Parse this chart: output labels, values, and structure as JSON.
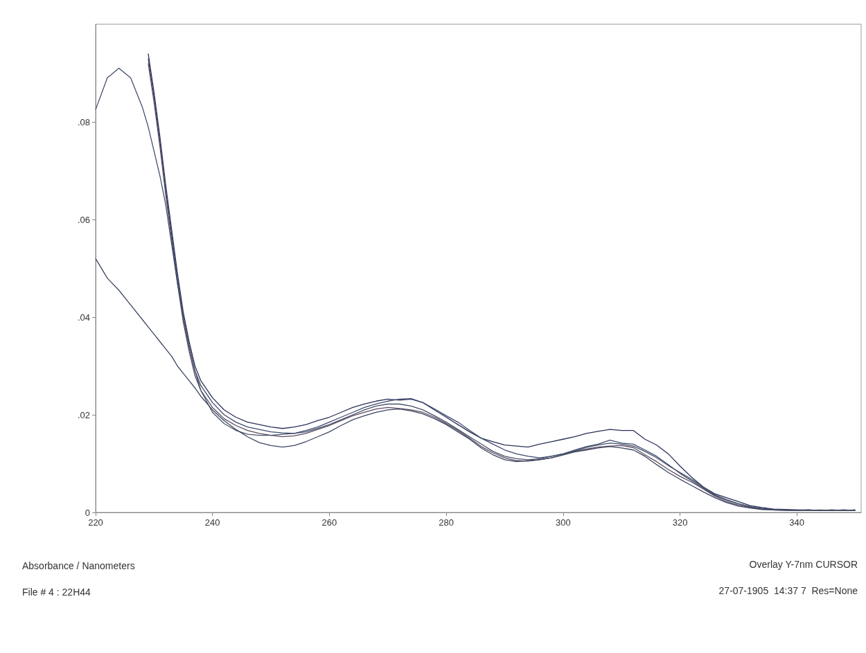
{
  "chart_data": {
    "type": "line",
    "x": [
      220,
      222,
      224,
      226,
      228,
      229,
      230,
      231,
      232,
      233,
      234,
      235,
      236,
      237,
      238,
      240,
      242,
      244,
      246,
      248,
      250,
      252,
      254,
      256,
      258,
      260,
      262,
      264,
      266,
      268,
      270,
      272,
      274,
      276,
      278,
      280,
      282,
      284,
      286,
      288,
      290,
      292,
      294,
      296,
      298,
      300,
      302,
      304,
      306,
      308,
      310,
      312,
      314,
      316,
      318,
      320,
      322,
      324,
      326,
      328,
      330,
      332,
      334,
      336,
      338,
      340,
      342,
      344,
      346,
      348,
      350
    ],
    "series": [
      {
        "color": "#2b2f5a",
        "values": [
          null,
          null,
          null,
          null,
          null,
          0.094,
          0.086,
          0.077,
          0.067,
          0.058,
          0.049,
          0.041,
          0.035,
          0.03,
          0.027,
          0.0235,
          0.021,
          0.0195,
          0.0185,
          0.018,
          0.0175,
          0.0172,
          0.0175,
          0.018,
          0.0188,
          0.0195,
          0.0205,
          0.0215,
          0.0222,
          0.0228,
          0.0232,
          0.023,
          0.0232,
          0.0225,
          0.021,
          0.0195,
          0.018,
          0.0165,
          0.0152,
          0.0145,
          0.0138,
          0.0136,
          0.0134,
          0.014,
          0.0145,
          0.015,
          0.0155,
          0.0162,
          0.0166,
          0.017,
          0.0168,
          0.0168,
          0.015,
          0.0138,
          0.012,
          0.0095,
          0.0072,
          0.0052,
          0.0038,
          0.003,
          0.0022,
          0.0014,
          0.001,
          0.0007,
          0.0006,
          0.0005,
          0.0005,
          0.0004,
          0.0005,
          0.0004,
          0.0005
        ]
      },
      {
        "color": "#3d4a6e",
        "values": [
          null,
          null,
          null,
          null,
          null,
          0.093,
          0.085,
          0.076,
          0.066,
          0.057,
          0.048,
          0.04,
          0.034,
          0.029,
          0.026,
          0.0225,
          0.02,
          0.0185,
          0.0175,
          0.017,
          0.0165,
          0.0163,
          0.0162,
          0.0168,
          0.0175,
          0.0185,
          0.0195,
          0.0205,
          0.0215,
          0.0222,
          0.0228,
          0.0232,
          0.0233,
          0.0225,
          0.0212,
          0.0198,
          0.0185,
          0.0168,
          0.0152,
          0.014,
          0.0128,
          0.012,
          0.0115,
          0.0112,
          0.0115,
          0.012,
          0.0128,
          0.0135,
          0.014,
          0.0148,
          0.0142,
          0.014,
          0.0128,
          0.0115,
          0.0098,
          0.008,
          0.0065,
          0.005,
          0.0035,
          0.0025,
          0.0018,
          0.0012,
          0.0008,
          0.0006,
          0.0005,
          0.0004,
          0.0005,
          0.0004,
          0.0004,
          0.0005,
          0.0004
        ]
      },
      {
        "color": "#5a4a5e",
        "values": [
          null,
          null,
          null,
          null,
          null,
          0.092,
          0.084,
          0.075,
          0.065,
          0.056,
          0.047,
          0.039,
          0.033,
          0.028,
          0.025,
          0.0215,
          0.0192,
          0.0178,
          0.0168,
          0.0162,
          0.0158,
          0.0155,
          0.0157,
          0.0162,
          0.017,
          0.0178,
          0.0188,
          0.0198,
          0.0205,
          0.0212,
          0.0215,
          0.0213,
          0.021,
          0.0205,
          0.0195,
          0.0182,
          0.0168,
          0.0152,
          0.0135,
          0.0122,
          0.0112,
          0.0106,
          0.0105,
          0.0108,
          0.0112,
          0.0118,
          0.0125,
          0.013,
          0.0134,
          0.0136,
          0.0137,
          0.0133,
          0.0118,
          0.0104,
          0.0088,
          0.0074,
          0.0062,
          0.0048,
          0.0033,
          0.0022,
          0.0015,
          0.001,
          0.0007,
          0.0005,
          0.0005,
          0.0004,
          0.0004,
          0.0005,
          0.0004,
          0.0004,
          0.0005
        ]
      },
      {
        "color": "#44506a",
        "values": [
          0.0825,
          0.089,
          0.091,
          0.089,
          0.083,
          0.079,
          0.074,
          0.069,
          0.063,
          0.055,
          0.047,
          0.04,
          0.034,
          0.029,
          0.025,
          0.0205,
          0.0182,
          0.0168,
          0.016,
          0.0158,
          0.0158,
          0.016,
          0.0162,
          0.0165,
          0.0172,
          0.018,
          0.019,
          0.02,
          0.021,
          0.0218,
          0.0222,
          0.0222,
          0.0218,
          0.021,
          0.0198,
          0.0185,
          0.017,
          0.0155,
          0.014,
          0.0125,
          0.0115,
          0.011,
          0.0108,
          0.011,
          0.0115,
          0.012,
          0.0126,
          0.0133,
          0.0138,
          0.0142,
          0.014,
          0.0136,
          0.0125,
          0.0112,
          0.0096,
          0.0082,
          0.0068,
          0.0052,
          0.0036,
          0.0026,
          0.0018,
          0.0011,
          0.0008,
          0.0006,
          0.0005,
          0.0005,
          0.0004,
          0.0004,
          0.0005,
          0.0004,
          0.0004
        ]
      },
      {
        "color": "#3a4560",
        "values": [
          0.052,
          0.048,
          0.0455,
          0.0425,
          0.0395,
          0.038,
          0.0365,
          0.035,
          0.0335,
          0.032,
          0.03,
          0.0285,
          0.027,
          0.0255,
          0.0238,
          0.021,
          0.0188,
          0.017,
          0.0155,
          0.0143,
          0.0137,
          0.0134,
          0.0137,
          0.0145,
          0.0155,
          0.0165,
          0.0178,
          0.019,
          0.0198,
          0.0205,
          0.021,
          0.0212,
          0.0208,
          0.0202,
          0.0192,
          0.018,
          0.0165,
          0.015,
          0.0132,
          0.0118,
          0.0108,
          0.0104,
          0.0106,
          0.0108,
          0.0112,
          0.0118,
          0.0124,
          0.0128,
          0.0132,
          0.0135,
          0.0132,
          0.0128,
          0.0115,
          0.0098,
          0.0082,
          0.0068,
          0.0055,
          0.0042,
          0.003,
          0.002,
          0.0013,
          0.0009,
          0.0006,
          0.0005,
          0.0004,
          0.0004,
          0.0005,
          0.0004,
          0.0004,
          0.0005,
          0.0004
        ]
      }
    ],
    "xlim": [
      220,
      351
    ],
    "xticks": [
      220,
      240,
      260,
      280,
      300,
      320,
      340
    ],
    "ylim": [
      0,
      0.1
    ],
    "yticks": [
      {
        "value": 0,
        "label": "0"
      },
      {
        "value": 0.02,
        "label": ".02"
      },
      {
        "value": 0.04,
        "label": ".04"
      },
      {
        "value": 0.06,
        "label": ".06"
      },
      {
        "value": 0.08,
        "label": ".08"
      }
    ],
    "annotations": [
      "Absorbance / Nanometers",
      "File # 4 : 22H44",
      "Overlay Y-7nm CURSOR",
      "27-07-1905  14:37 7  Res=None"
    ]
  }
}
